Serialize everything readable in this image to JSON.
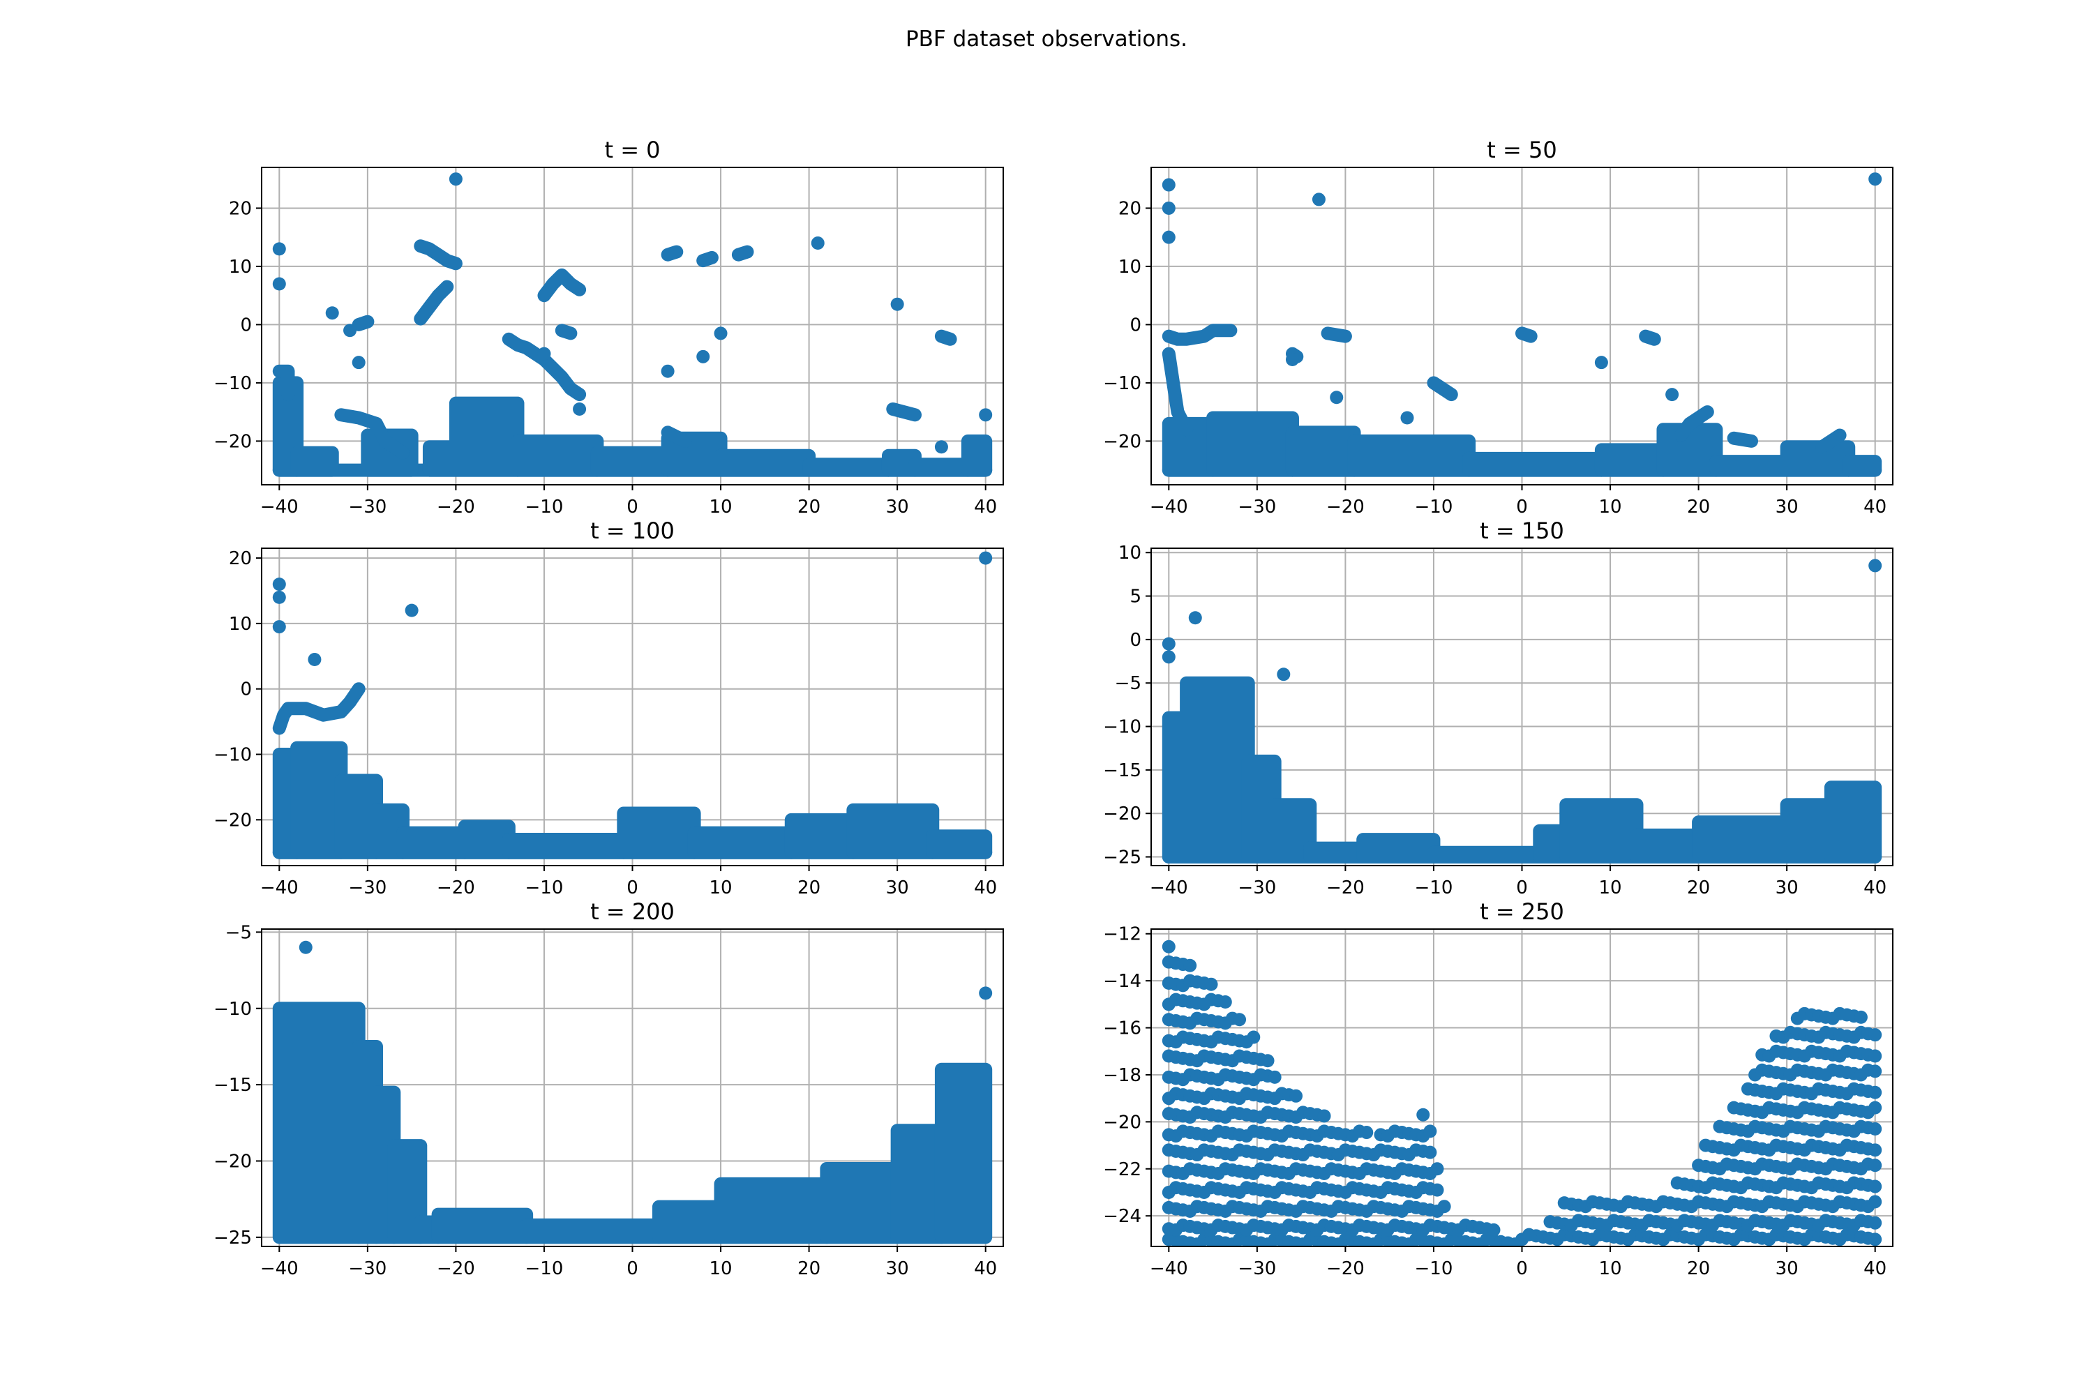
{
  "figure": {
    "title": "PBF dataset observations."
  },
  "style": {
    "marker_color": "#1f77b4",
    "grid": true
  },
  "chart_data": [
    {
      "type": "scatter",
      "title": "t = 0",
      "xlim": [
        -42,
        42
      ],
      "ylim": [
        -27.5,
        27.0
      ],
      "xticks": [
        -40,
        -30,
        -20,
        -10,
        0,
        10,
        20,
        30,
        40
      ],
      "yticks": [
        -20,
        -10,
        0,
        10,
        20
      ],
      "points": [
        [
          -40,
          13
        ],
        [
          -40,
          7
        ],
        [
          -20,
          25
        ],
        [
          21,
          14
        ],
        [
          30,
          3.5
        ],
        [
          -34,
          2
        ],
        [
          -32,
          -1
        ],
        [
          -31,
          -6.5
        ],
        [
          -10,
          -5
        ],
        [
          -6,
          -14.5
        ],
        [
          4,
          -8
        ],
        [
          8,
          -5.5
        ],
        [
          10,
          -1.5
        ],
        [
          35,
          -21
        ],
        [
          40,
          -15.5
        ]
      ],
      "paths": [
        [
          [
            -40,
            -8
          ],
          [
            -39,
            -8
          ],
          [
            -39,
            -12
          ]
        ],
        [
          [
            -24,
            13.5
          ],
          [
            -23,
            13
          ],
          [
            -22,
            12
          ],
          [
            -21,
            11
          ],
          [
            -20,
            10.5
          ]
        ],
        [
          [
            -24,
            1
          ],
          [
            -23,
            3
          ],
          [
            -22,
            5
          ],
          [
            -21,
            6.5
          ]
        ],
        [
          [
            -31,
            0
          ],
          [
            -30,
            0.5
          ]
        ],
        [
          [
            -10,
            5
          ],
          [
            -9,
            7
          ],
          [
            -8,
            8.5
          ],
          [
            -7,
            7
          ],
          [
            -6,
            6
          ]
        ],
        [
          [
            -8,
            -1
          ],
          [
            -7,
            -1.5
          ]
        ],
        [
          [
            -14,
            -2.5
          ],
          [
            -13,
            -3.5
          ],
          [
            -12,
            -4
          ],
          [
            -11,
            -5
          ],
          [
            -10,
            -6
          ],
          [
            -9,
            -7.5
          ],
          [
            -8,
            -9
          ],
          [
            -7,
            -11
          ],
          [
            -6,
            -12
          ]
        ],
        [
          [
            4,
            12
          ],
          [
            5,
            12.5
          ]
        ],
        [
          [
            8,
            11
          ],
          [
            9,
            11.5
          ]
        ],
        [
          [
            12,
            12
          ],
          [
            13,
            12.5
          ]
        ],
        [
          [
            4,
            -18.5
          ],
          [
            6,
            -20
          ]
        ],
        [
          [
            29.5,
            -14.5
          ],
          [
            32,
            -15.5
          ]
        ],
        [
          [
            35,
            -2
          ],
          [
            36,
            -2.5
          ]
        ],
        [
          [
            -33,
            -15.5
          ],
          [
            -31,
            -16
          ],
          [
            -29,
            -17
          ],
          [
            -28,
            -20
          ],
          [
            -26,
            -22
          ]
        ]
      ],
      "bands": [
        {
          "x0": -40,
          "x1": 40,
          "ytop": -25,
          "ybot": -25
        },
        {
          "x0": -40,
          "x1": -38,
          "ytop": -10,
          "ybot": -25
        },
        {
          "x0": -38,
          "x1": -34,
          "ytop": -22,
          "ybot": -25
        },
        {
          "x0": -30,
          "x1": -25,
          "ytop": -19,
          "ybot": -25
        },
        {
          "x0": -23,
          "x1": -20,
          "ytop": -21,
          "ybot": -25
        },
        {
          "x0": -20,
          "x1": -13,
          "ytop": -13.5,
          "ybot": -25
        },
        {
          "x0": -13,
          "x1": -4,
          "ytop": -20,
          "ybot": -25
        },
        {
          "x0": -4,
          "x1": 4,
          "ytop": -22,
          "ybot": -25
        },
        {
          "x0": 4,
          "x1": 10,
          "ytop": -19.5,
          "ybot": -25
        },
        {
          "x0": 10,
          "x1": 20,
          "ytop": -22.5,
          "ybot": -25
        },
        {
          "x0": 20,
          "x1": 29,
          "ytop": -24,
          "ybot": -25
        },
        {
          "x0": 29,
          "x1": 32,
          "ytop": -22.5,
          "ybot": -25
        },
        {
          "x0": 32,
          "x1": 38,
          "ytop": -24,
          "ybot": -25
        },
        {
          "x0": 38,
          "x1": 40,
          "ytop": -20,
          "ybot": -25
        }
      ]
    },
    {
      "type": "scatter",
      "title": "t = 50",
      "xlim": [
        -42,
        42
      ],
      "ylim": [
        -27.5,
        27.0
      ],
      "xticks": [
        -40,
        -30,
        -20,
        -10,
        0,
        10,
        20,
        30,
        40
      ],
      "yticks": [
        -20,
        -10,
        0,
        10,
        20
      ],
      "points": [
        [
          -40,
          24
        ],
        [
          -40,
          20
        ],
        [
          -40,
          15
        ],
        [
          -23,
          21.5
        ],
        [
          40,
          25
        ],
        [
          -26,
          -6
        ],
        [
          -21,
          -12.5
        ],
        [
          -13,
          -16
        ],
        [
          9,
          -6.5
        ],
        [
          17,
          -12
        ]
      ],
      "paths": [
        [
          [
            -40,
            -2
          ],
          [
            -39,
            -2.5
          ],
          [
            -38,
            -2.5
          ],
          [
            -36,
            -2
          ],
          [
            -35,
            -1
          ],
          [
            -33,
            -1
          ]
        ],
        [
          [
            -26,
            -5
          ],
          [
            -25.5,
            -5.5
          ]
        ],
        [
          [
            -22,
            -1.5
          ],
          [
            -20,
            -2
          ]
        ],
        [
          [
            0,
            -1.5
          ],
          [
            1,
            -2
          ]
        ],
        [
          [
            14,
            -2
          ],
          [
            15,
            -2.5
          ]
        ],
        [
          [
            -10,
            -10
          ],
          [
            -9,
            -11
          ],
          [
            -8,
            -12
          ]
        ],
        [
          [
            -40,
            -5
          ],
          [
            -39.5,
            -10
          ],
          [
            -39,
            -15
          ],
          [
            -38,
            -18
          ]
        ],
        [
          [
            18,
            -19
          ],
          [
            19,
            -17
          ],
          [
            20,
            -16
          ],
          [
            21,
            -15
          ]
        ],
        [
          [
            24,
            -19.5
          ],
          [
            26,
            -20
          ]
        ],
        [
          [
            34,
            -21
          ],
          [
            36,
            -19
          ]
        ]
      ],
      "bands": [
        {
          "x0": -40,
          "x1": 40,
          "ytop": -25,
          "ybot": -25
        },
        {
          "x0": -40,
          "x1": -35,
          "ytop": -17,
          "ybot": -25
        },
        {
          "x0": -35,
          "x1": -26,
          "ytop": -16,
          "ybot": -25
        },
        {
          "x0": -26,
          "x1": -19,
          "ytop": -18.5,
          "ybot": -25
        },
        {
          "x0": -19,
          "x1": -6,
          "ytop": -20,
          "ybot": -25
        },
        {
          "x0": -6,
          "x1": 9,
          "ytop": -23,
          "ybot": -25
        },
        {
          "x0": 9,
          "x1": 16,
          "ytop": -21.5,
          "ybot": -25
        },
        {
          "x0": 16,
          "x1": 22,
          "ytop": -18,
          "ybot": -25
        },
        {
          "x0": 22,
          "x1": 30,
          "ytop": -23.5,
          "ybot": -25
        },
        {
          "x0": 30,
          "x1": 37,
          "ytop": -21,
          "ybot": -25
        },
        {
          "x0": 37,
          "x1": 40,
          "ytop": -23.5,
          "ybot": -25
        }
      ]
    },
    {
      "type": "scatter",
      "title": "t = 100",
      "xlim": [
        -42,
        42
      ],
      "ylim": [
        -27.0,
        21.5
      ],
      "xticks": [
        -40,
        -30,
        -20,
        -10,
        0,
        10,
        20,
        30,
        40
      ],
      "yticks": [
        -20,
        -10,
        0,
        10,
        20
      ],
      "points": [
        [
          -40,
          16
        ],
        [
          -40,
          14
        ],
        [
          -40,
          9.5
        ],
        [
          -25,
          12
        ],
        [
          -36,
          4.5
        ],
        [
          40,
          20
        ]
      ],
      "paths": [
        [
          [
            -40,
            -6
          ],
          [
            -39.5,
            -4
          ],
          [
            -39,
            -3
          ],
          [
            -37,
            -3
          ],
          [
            -35,
            -4
          ],
          [
            -33,
            -3.5
          ],
          [
            -32,
            -2
          ],
          [
            -31,
            0
          ]
        ]
      ],
      "bands": [
        {
          "x0": -40,
          "x1": 40,
          "ytop": -25,
          "ybot": -25
        },
        {
          "x0": -40,
          "x1": -38,
          "ytop": -10,
          "ybot": -25
        },
        {
          "x0": -38,
          "x1": -33,
          "ytop": -9,
          "ybot": -25
        },
        {
          "x0": -33,
          "x1": -29,
          "ytop": -14,
          "ybot": -25
        },
        {
          "x0": -29,
          "x1": -26,
          "ytop": -18.5,
          "ybot": -25
        },
        {
          "x0": -26,
          "x1": -19,
          "ytop": -22,
          "ybot": -25
        },
        {
          "x0": -19,
          "x1": -14,
          "ytop": -21,
          "ybot": -25
        },
        {
          "x0": -14,
          "x1": -1,
          "ytop": -23,
          "ybot": -25
        },
        {
          "x0": -1,
          "x1": 7,
          "ytop": -19,
          "ybot": -25
        },
        {
          "x0": 7,
          "x1": 18,
          "ytop": -22,
          "ybot": -25
        },
        {
          "x0": 18,
          "x1": 25,
          "ytop": -20,
          "ybot": -25
        },
        {
          "x0": 25,
          "x1": 34,
          "ytop": -18.5,
          "ybot": -25
        },
        {
          "x0": 34,
          "x1": 40,
          "ytop": -22.5,
          "ybot": -25
        }
      ]
    },
    {
      "type": "scatter",
      "title": "t = 150",
      "xlim": [
        -42,
        42
      ],
      "ylim": [
        -26.0,
        10.5
      ],
      "xticks": [
        -40,
        -30,
        -20,
        -10,
        0,
        10,
        20,
        30,
        40
      ],
      "yticks": [
        -25,
        -20,
        -15,
        -10,
        -5,
        0,
        5,
        10
      ],
      "points": [
        [
          -40,
          -0.5
        ],
        [
          -40,
          -2
        ],
        [
          -37,
          2.5
        ],
        [
          -27,
          -4
        ],
        [
          40,
          8.5
        ]
      ],
      "paths": [],
      "bands": [
        {
          "x0": -40,
          "x1": 40,
          "ytop": -25,
          "ybot": -25
        },
        {
          "x0": -40,
          "x1": -38,
          "ytop": -9,
          "ybot": -25
        },
        {
          "x0": -38,
          "x1": -31,
          "ytop": -5,
          "ybot": -25
        },
        {
          "x0": -31,
          "x1": -28,
          "ytop": -14,
          "ybot": -25
        },
        {
          "x0": -28,
          "x1": -24,
          "ytop": -19,
          "ybot": -25
        },
        {
          "x0": -24,
          "x1": -18,
          "ytop": -24,
          "ybot": -25
        },
        {
          "x0": -18,
          "x1": -10,
          "ytop": -23,
          "ybot": -25
        },
        {
          "x0": -10,
          "x1": 2,
          "ytop": -24.5,
          "ybot": -25
        },
        {
          "x0": 2,
          "x1": 5,
          "ytop": -22,
          "ybot": -25
        },
        {
          "x0": 5,
          "x1": 13,
          "ytop": -19,
          "ybot": -25
        },
        {
          "x0": 13,
          "x1": 20,
          "ytop": -22.5,
          "ybot": -25
        },
        {
          "x0": 20,
          "x1": 30,
          "ytop": -21,
          "ybot": -25
        },
        {
          "x0": 30,
          "x1": 35,
          "ytop": -19,
          "ybot": -25
        },
        {
          "x0": 35,
          "x1": 40,
          "ytop": -17,
          "ybot": -25
        }
      ]
    },
    {
      "type": "scatter",
      "title": "t = 200",
      "xlim": [
        -42,
        42
      ],
      "ylim": [
        -25.6,
        -4.8
      ],
      "xticks": [
        -40,
        -30,
        -20,
        -10,
        0,
        10,
        20,
        30,
        40
      ],
      "yticks": [
        -25,
        -20,
        -15,
        -10,
        -5
      ],
      "points": [
        [
          -37,
          -6
        ],
        [
          40,
          -9
        ]
      ],
      "paths": [],
      "bands": [
        {
          "x0": -40,
          "x1": -31,
          "ytop": -10,
          "ybot": -25
        },
        {
          "x0": -31,
          "x1": -29,
          "ytop": -12.5,
          "ybot": -25
        },
        {
          "x0": -29,
          "x1": -27,
          "ytop": -15.5,
          "ybot": -25
        },
        {
          "x0": -27,
          "x1": -24,
          "ytop": -19,
          "ybot": -25
        },
        {
          "x0": -24,
          "x1": -22,
          "ytop": -24,
          "ybot": -25
        },
        {
          "x0": -22,
          "x1": -12,
          "ytop": -23.5,
          "ybot": -25
        },
        {
          "x0": -12,
          "x1": 3,
          "ytop": -24.2,
          "ybot": -25
        },
        {
          "x0": 3,
          "x1": 10,
          "ytop": -23,
          "ybot": -25
        },
        {
          "x0": 10,
          "x1": 22,
          "ytop": -21.5,
          "ybot": -25
        },
        {
          "x0": 22,
          "x1": 30,
          "ytop": -20.5,
          "ybot": -25
        },
        {
          "x0": 30,
          "x1": 35,
          "ytop": -18,
          "ybot": -25
        },
        {
          "x0": 35,
          "x1": 40,
          "ytop": -14,
          "ybot": -25
        }
      ]
    },
    {
      "type": "scatter",
      "title": "t = 250",
      "xlim": [
        -42,
        42
      ],
      "ylim": [
        -25.3,
        -11.8
      ],
      "xticks": [
        -40,
        -30,
        -20,
        -10,
        0,
        10,
        20,
        30,
        40
      ],
      "yticks": [
        -24,
        -22,
        -20,
        -18,
        -16,
        -14,
        -12
      ],
      "rows": [
        -25,
        -24.4,
        -23.6,
        -22.8,
        -22,
        -21.2,
        -20.4,
        -19.6,
        -18.8,
        -18,
        -17.2,
        -16.4,
        -15.6,
        -14.8,
        -14,
        -13.2,
        -12.4
      ],
      "profile": [
        [
          -40,
          -12.4
        ],
        [
          -37,
          -13.4
        ],
        [
          -35,
          -14
        ],
        [
          -33,
          -15
        ],
        [
          -31,
          -16
        ],
        [
          -29,
          -17
        ],
        [
          -27,
          -18.5
        ],
        [
          -24,
          -19
        ],
        [
          -22,
          -19.8
        ],
        [
          -20,
          -20
        ],
        [
          -17,
          -20.5
        ],
        [
          -15,
          -20.2
        ],
        [
          -13,
          -19.8
        ],
        [
          -11,
          -19.6
        ],
        [
          -10,
          -21
        ],
        [
          -8,
          -24.2
        ],
        [
          -2,
          -24.5
        ],
        [
          3,
          -24.5
        ],
        [
          5,
          -23
        ],
        [
          8,
          -23
        ],
        [
          12,
          -23.2
        ],
        [
          15,
          -23
        ],
        [
          18,
          -22.8
        ],
        [
          21,
          -21
        ],
        [
          24,
          -19.5
        ],
        [
          26,
          -18
        ],
        [
          28,
          -16.5
        ],
        [
          30,
          -15.8
        ],
        [
          33,
          -15.2
        ],
        [
          36,
          -15
        ],
        [
          38,
          -15.5
        ],
        [
          40,
          -16
        ]
      ],
      "points": [],
      "paths": [],
      "bands": []
    }
  ]
}
